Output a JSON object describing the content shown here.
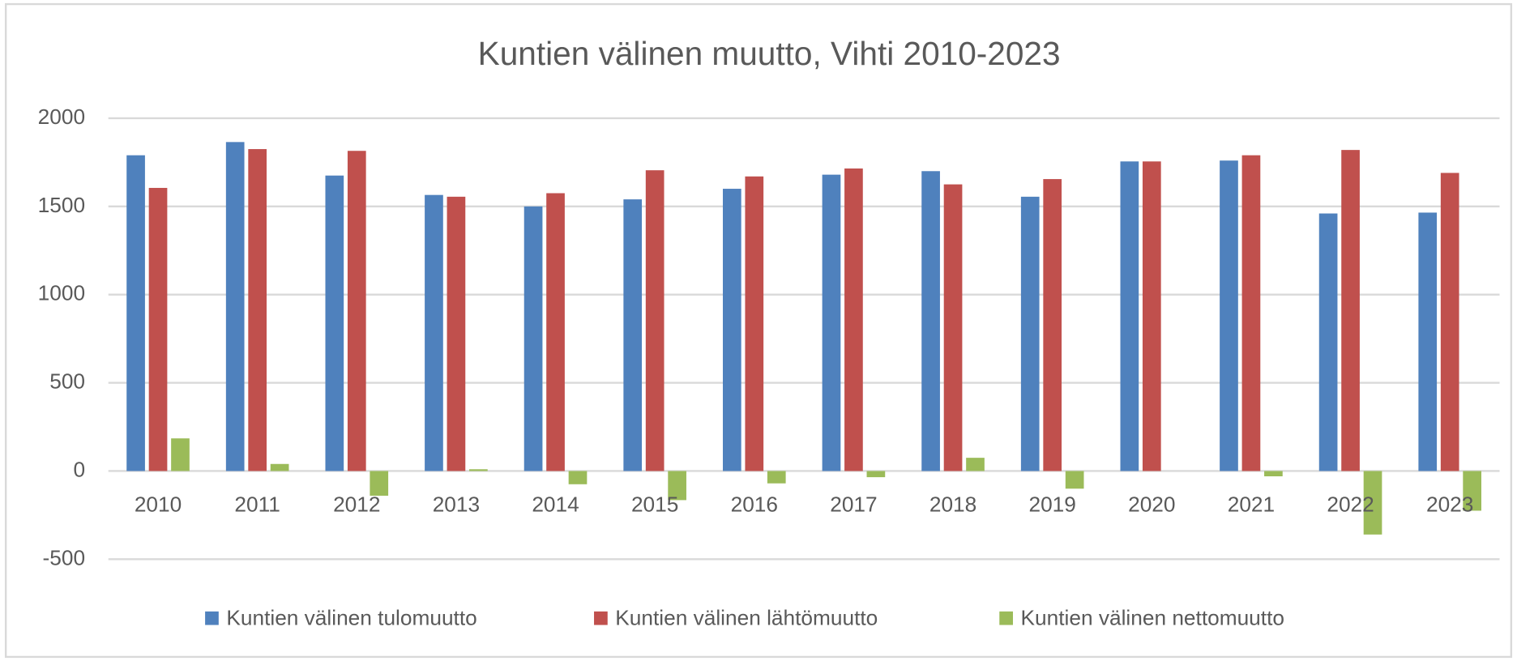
{
  "chart_data": {
    "type": "bar",
    "title": "Kuntien välinen muutto, Vihti 2010-2023",
    "categories": [
      "2010",
      "2011",
      "2012",
      "2013",
      "2014",
      "2015",
      "2016",
      "2017",
      "2018",
      "2019",
      "2020",
      "2021",
      "2022",
      "2023"
    ],
    "series": [
      {
        "name": "Kuntien välinen tulomuutto",
        "color": "#4f81bd",
        "values": [
          1790,
          1865,
          1675,
          1565,
          1500,
          1540,
          1600,
          1680,
          1700,
          1555,
          1755,
          1760,
          1460,
          1465
        ]
      },
      {
        "name": "Kuntien välinen lähtömuutto",
        "color": "#c0504d",
        "values": [
          1605,
          1825,
          1815,
          1555,
          1575,
          1705,
          1670,
          1715,
          1625,
          1655,
          1755,
          1790,
          1820,
          1690
        ]
      },
      {
        "name": "Kuntien välinen nettomuutto",
        "color": "#9bbb59",
        "values": [
          185,
          40,
          -140,
          10,
          -75,
          -165,
          -70,
          -35,
          75,
          -100,
          0,
          -30,
          -360,
          -225
        ]
      }
    ],
    "ylim": [
      -500,
      2000
    ],
    "yticks": [
      -500,
      0,
      500,
      1000,
      1500,
      2000
    ],
    "grid": true,
    "legend": "bottom"
  }
}
